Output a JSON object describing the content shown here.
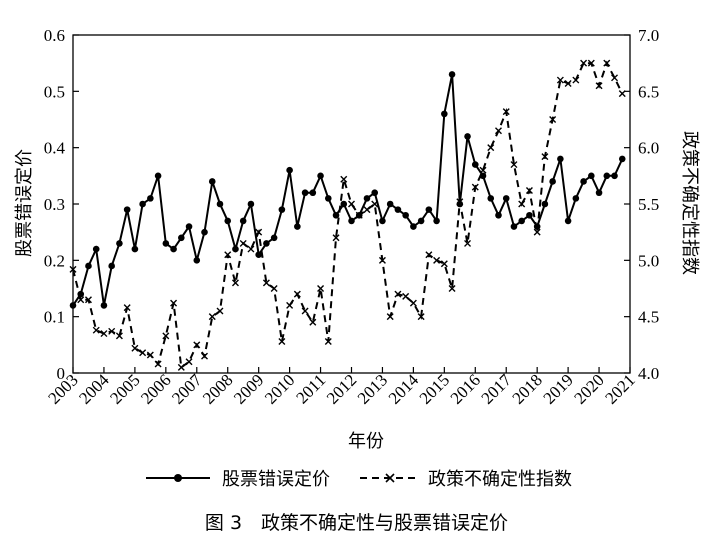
{
  "caption": "图 3　政策不确定性与股票错误定价",
  "chart_data": {
    "type": "line",
    "xlabel": "年份",
    "ylabel_left": "股票错误定价",
    "ylabel_right": "政策不确定性指数",
    "ylim_left": [
      0,
      0.6
    ],
    "ylim_right": [
      4.0,
      7.0
    ],
    "xlim": [
      2003,
      2021
    ],
    "x_ticks": [
      "2003",
      "2004",
      "2005",
      "2006",
      "2007",
      "2008",
      "2009",
      "2010",
      "2011",
      "2012",
      "2013",
      "2014",
      "2015",
      "2016",
      "2017",
      "2018",
      "2019",
      "2020",
      "2021"
    ],
    "y_ticks_left": [
      "0",
      "0.1",
      "0.2",
      "0.3",
      "0.4",
      "0.5",
      "0.6"
    ],
    "y_ticks_right": [
      "4.0",
      "4.5",
      "5.0",
      "5.5",
      "6.0",
      "6.5",
      "7.0"
    ],
    "legend_position": "bottom",
    "series": [
      {
        "name": "股票错误定价",
        "axis": "left",
        "style": "solid-circle",
        "color": "#000000",
        "x": [
          2003.0,
          2003.25,
          2003.5,
          2003.75,
          2004.0,
          2004.25,
          2004.5,
          2004.75,
          2005.0,
          2005.25,
          2005.5,
          2005.75,
          2006.0,
          2006.25,
          2006.5,
          2006.75,
          2007.0,
          2007.25,
          2007.5,
          2007.75,
          2008.0,
          2008.25,
          2008.5,
          2008.75,
          2009.0,
          2009.25,
          2009.5,
          2009.75,
          2010.0,
          2010.25,
          2010.5,
          2010.75,
          2011.0,
          2011.25,
          2011.5,
          2011.75,
          2012.0,
          2012.25,
          2012.5,
          2012.75,
          2013.0,
          2013.25,
          2013.5,
          2013.75,
          2014.0,
          2014.25,
          2014.5,
          2014.75,
          2015.0,
          2015.25,
          2015.5,
          2015.75,
          2016.0,
          2016.25,
          2016.5,
          2016.75,
          2017.0,
          2017.25,
          2017.5,
          2017.75,
          2018.0,
          2018.25,
          2018.5,
          2018.75,
          2019.0,
          2019.25,
          2019.5,
          2019.75,
          2020.0,
          2020.25,
          2020.5,
          2020.75
        ],
        "values": [
          0.12,
          0.14,
          0.19,
          0.22,
          0.12,
          0.19,
          0.23,
          0.29,
          0.22,
          0.3,
          0.31,
          0.35,
          0.23,
          0.22,
          0.24,
          0.26,
          0.2,
          0.25,
          0.34,
          0.3,
          0.27,
          0.22,
          0.27,
          0.3,
          0.21,
          0.23,
          0.24,
          0.29,
          0.36,
          0.26,
          0.32,
          0.32,
          0.35,
          0.31,
          0.28,
          0.3,
          0.27,
          0.28,
          0.31,
          0.32,
          0.27,
          0.3,
          0.29,
          0.28,
          0.26,
          0.27,
          0.29,
          0.27,
          0.46,
          0.53,
          0.3,
          0.42,
          0.37,
          0.35,
          0.31,
          0.28,
          0.31,
          0.26,
          0.27,
          0.28,
          0.26,
          0.3,
          0.34,
          0.38,
          0.27,
          0.31,
          0.34,
          0.35,
          0.32,
          0.35,
          0.35,
          0.38
        ]
      },
      {
        "name": "政策不确定性指数",
        "axis": "right",
        "style": "dashed-x",
        "color": "#000000",
        "x": [
          2003.0,
          2003.25,
          2003.5,
          2003.75,
          2004.0,
          2004.25,
          2004.5,
          2004.75,
          2005.0,
          2005.25,
          2005.5,
          2005.75,
          2006.0,
          2006.25,
          2006.5,
          2006.75,
          2007.0,
          2007.25,
          2007.5,
          2007.75,
          2008.0,
          2008.25,
          2008.5,
          2008.75,
          2009.0,
          2009.25,
          2009.5,
          2009.75,
          2010.0,
          2010.25,
          2010.5,
          2010.75,
          2011.0,
          2011.25,
          2011.5,
          2011.75,
          2012.0,
          2012.25,
          2012.5,
          2012.75,
          2013.0,
          2013.25,
          2013.5,
          2013.75,
          2014.0,
          2014.25,
          2014.5,
          2014.75,
          2015.0,
          2015.25,
          2015.5,
          2015.75,
          2016.0,
          2016.25,
          2016.5,
          2016.75,
          2017.0,
          2017.25,
          2017.5,
          2017.75,
          2018.0,
          2018.25,
          2018.5,
          2018.75,
          2019.0,
          2019.25,
          2019.5,
          2019.75,
          2020.0,
          2020.25,
          2020.5,
          2020.75
        ],
        "values": [
          4.92,
          4.65,
          4.65,
          4.38,
          4.35,
          4.37,
          4.33,
          4.58,
          4.22,
          4.18,
          4.16,
          4.08,
          4.33,
          4.62,
          4.05,
          4.1,
          4.25,
          4.15,
          4.5,
          4.55,
          5.05,
          4.8,
          5.15,
          5.1,
          5.25,
          4.8,
          4.75,
          4.28,
          4.6,
          4.7,
          4.55,
          4.45,
          4.75,
          4.28,
          5.2,
          5.72,
          5.5,
          5.4,
          5.45,
          5.5,
          5.0,
          4.5,
          4.7,
          4.68,
          4.62,
          4.5,
          5.05,
          5.0,
          4.97,
          4.75,
          5.52,
          5.15,
          5.65,
          5.8,
          6.0,
          6.15,
          6.32,
          5.85,
          5.5,
          5.62,
          5.25,
          5.92,
          6.25,
          6.6,
          6.57,
          6.6,
          6.75,
          6.75,
          6.55,
          6.75,
          6.62,
          6.48
        ]
      }
    ]
  }
}
